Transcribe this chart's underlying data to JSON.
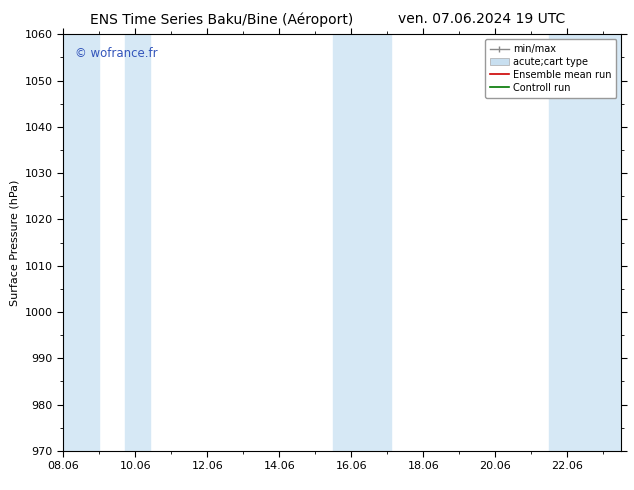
{
  "title_left": "ENS Time Series Baku/Bine (Aéroport)",
  "title_right": "ven. 07.06.2024 19 UTC",
  "ylabel": "Surface Pressure (hPa)",
  "ylim": [
    970,
    1060
  ],
  "yticks": [
    970,
    980,
    990,
    1000,
    1010,
    1020,
    1030,
    1040,
    1050,
    1060
  ],
  "xtick_labels": [
    "08.06",
    "10.06",
    "12.06",
    "14.06",
    "16.06",
    "18.06",
    "20.06",
    "22.06"
  ],
  "xtick_positions": [
    0,
    2,
    4,
    6,
    8,
    10,
    12,
    14
  ],
  "x_min": 0,
  "x_max": 15.5,
  "watermark": "© wofrance.fr",
  "watermark_color": "#3355bb",
  "bg_color": "#ffffff",
  "shaded_color": "#d6e8f5",
  "band_ranges": [
    [
      0,
      0.5
    ],
    [
      1.5,
      2.5
    ],
    [
      7.5,
      8.0
    ],
    [
      8.0,
      9.0
    ],
    [
      13.5,
      14.0
    ],
    [
      14.0,
      15.5
    ]
  ],
  "title_fontsize": 10,
  "tick_fontsize": 8,
  "label_fontsize": 8,
  "legend_fontsize": 7
}
